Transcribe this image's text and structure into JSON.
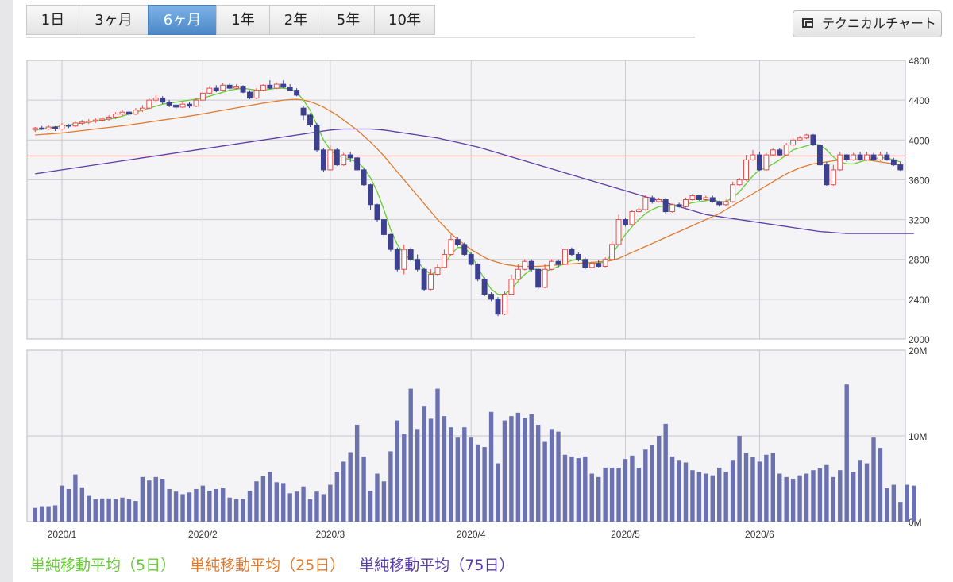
{
  "tabs": [
    {
      "label": "1日",
      "active": false
    },
    {
      "label": "3ヶ月",
      "active": false
    },
    {
      "label": "6ヶ月",
      "active": true
    },
    {
      "label": "1年",
      "active": false
    },
    {
      "label": "2年",
      "active": false
    },
    {
      "label": "5年",
      "active": false
    },
    {
      "label": "10年",
      "active": false
    }
  ],
  "technical_button": {
    "label": "テクニカルチャート",
    "icon": "window-icon"
  },
  "legend": [
    {
      "label": "単純移動平均（5日）",
      "color": "#66cc33"
    },
    {
      "label": "単純移動平均（25日）",
      "color": "#e07a2e"
    },
    {
      "label": "単純移動平均（75日）",
      "color": "#5a3ea8"
    }
  ],
  "chart_data": {
    "type": "candlestick",
    "x_ticks": [
      "2020/1",
      "2020/2",
      "2020/3",
      "2020/4",
      "2020/5",
      "2020/6"
    ],
    "x_tick_index": [
      4,
      25,
      44,
      65,
      88,
      108
    ],
    "price_axis": {
      "ticks": [
        4800,
        4400,
        4000,
        3600,
        3200,
        2800,
        2400,
        2000
      ],
      "ylim": [
        2000,
        4800
      ]
    },
    "volume_axis": {
      "ticks": [
        "20M",
        "10M",
        "0M"
      ],
      "ylim": [
        0,
        20
      ]
    },
    "reference_line": 3840,
    "colors": {
      "up": "#e84a4a",
      "down": "#3d3f8f",
      "volume": "#6c72b0",
      "grid": "#c9c9cf",
      "reference": "#e05555"
    },
    "candles": [
      [
        4100,
        4120,
        4080,
        4130,
        4070
      ],
      [
        4120,
        4110,
        4100,
        4140,
        4090
      ],
      [
        4110,
        4130,
        4100,
        4150,
        4090
      ],
      [
        4130,
        4120,
        4090,
        4140,
        4080
      ],
      [
        4110,
        4150,
        4100,
        4170,
        4060
      ],
      [
        4150,
        4140,
        4120,
        4160,
        4110
      ],
      [
        4140,
        4170,
        4130,
        4190,
        4120
      ],
      [
        4170,
        4180,
        4150,
        4200,
        4140
      ],
      [
        4180,
        4190,
        4160,
        4210,
        4150
      ],
      [
        4190,
        4200,
        4170,
        4220,
        4160
      ],
      [
        4200,
        4210,
        4180,
        4230,
        4170
      ],
      [
        4210,
        4230,
        4190,
        4250,
        4180
      ],
      [
        4230,
        4260,
        4210,
        4280,
        4200
      ],
      [
        4260,
        4280,
        4240,
        4300,
        4220
      ],
      [
        4280,
        4260,
        4240,
        4310,
        4230
      ],
      [
        4260,
        4300,
        4250,
        4320,
        4240
      ],
      [
        4300,
        4320,
        4280,
        4350,
        4270
      ],
      [
        4320,
        4400,
        4310,
        4420,
        4300
      ],
      [
        4400,
        4420,
        4380,
        4450,
        4370
      ],
      [
        4420,
        4380,
        4360,
        4440,
        4350
      ],
      [
        4380,
        4350,
        4330,
        4400,
        4320
      ],
      [
        4350,
        4330,
        4310,
        4370,
        4300
      ],
      [
        4330,
        4360,
        4320,
        4380,
        4310
      ],
      [
        4360,
        4340,
        4320,
        4380,
        4300
      ],
      [
        4340,
        4400,
        4330,
        4420,
        4320
      ],
      [
        4400,
        4470,
        4390,
        4490,
        4380
      ],
      [
        4470,
        4520,
        4460,
        4540,
        4450
      ],
      [
        4520,
        4500,
        4480,
        4550,
        4470
      ],
      [
        4500,
        4550,
        4490,
        4570,
        4480
      ],
      [
        4550,
        4520,
        4510,
        4570,
        4500
      ],
      [
        4520,
        4540,
        4510,
        4560,
        4500
      ],
      [
        4540,
        4480,
        4470,
        4550,
        4420
      ],
      [
        4480,
        4420,
        4410,
        4500,
        4400
      ],
      [
        4420,
        4500,
        4410,
        4520,
        4400
      ],
      [
        4500,
        4550,
        4490,
        4560,
        4480
      ],
      [
        4550,
        4520,
        4510,
        4600,
        4500
      ],
      [
        4520,
        4560,
        4510,
        4580,
        4500
      ],
      [
        4560,
        4530,
        4520,
        4600,
        4510
      ],
      [
        4530,
        4500,
        4490,
        4560,
        4480
      ],
      [
        4500,
        4450,
        4440,
        4520,
        4420
      ],
      [
        4320,
        4250,
        4200,
        4340,
        4190
      ],
      [
        4250,
        4150,
        4130,
        4270,
        4120
      ],
      [
        4150,
        3900,
        3880,
        4170,
        3860
      ],
      [
        3900,
        3700,
        3680,
        3920,
        3660
      ],
      [
        3700,
        3900,
        3690,
        3950,
        3680
      ],
      [
        3900,
        3750,
        3740,
        3920,
        3700
      ],
      [
        3750,
        3850,
        3740,
        3870,
        3720
      ],
      [
        3850,
        3820,
        3780,
        3880,
        3760
      ],
      [
        3820,
        3700,
        3690,
        3830,
        3680
      ],
      [
        3700,
        3550,
        3540,
        3720,
        3500
      ],
      [
        3550,
        3350,
        3300,
        3560,
        3280
      ],
      [
        3350,
        3200,
        3180,
        3360,
        3150
      ],
      [
        3200,
        3050,
        3020,
        3210,
        3000
      ],
      [
        3050,
        2900,
        2880,
        3060,
        2860
      ],
      [
        2900,
        2700,
        2680,
        2920,
        2650
      ],
      [
        2700,
        2900,
        2650,
        2950,
        2620
      ],
      [
        2900,
        2800,
        2780,
        2920,
        2760
      ],
      [
        2800,
        2700,
        2680,
        2850,
        2650
      ],
      [
        2700,
        2500,
        2480,
        2720,
        2450
      ],
      [
        2500,
        2650,
        2490,
        2700,
        2460
      ],
      [
        2650,
        2720,
        2640,
        2750,
        2620
      ],
      [
        2720,
        2850,
        2710,
        2900,
        2700
      ],
      [
        2850,
        3000,
        2840,
        3050,
        2820
      ],
      [
        3000,
        2950,
        2930,
        3020,
        2900
      ],
      [
        2950,
        2850,
        2830,
        2970,
        2800
      ],
      [
        2850,
        2750,
        2740,
        2870,
        2720
      ],
      [
        2750,
        2600,
        2580,
        2760,
        2560
      ],
      [
        2600,
        2450,
        2430,
        2620,
        2420
      ],
      [
        2450,
        2400,
        2380,
        2470,
        2350
      ],
      [
        2400,
        2250,
        2230,
        2420,
        2200
      ],
      [
        2250,
        2450,
        2240,
        2480,
        2230
      ],
      [
        2450,
        2600,
        2440,
        2650,
        2420
      ],
      [
        2600,
        2700,
        2590,
        2750,
        2580
      ],
      [
        2700,
        2780,
        2690,
        2800,
        2680
      ],
      [
        2780,
        2700,
        2680,
        2800,
        2660
      ],
      [
        2700,
        2520,
        2500,
        2720,
        2480
      ],
      [
        2520,
        2700,
        2510,
        2750,
        2500
      ],
      [
        2700,
        2780,
        2690,
        2800,
        2680
      ],
      [
        2780,
        2750,
        2720,
        2800,
        2700
      ],
      [
        2750,
        2900,
        2740,
        2950,
        2730
      ],
      [
        2900,
        2850,
        2830,
        2920,
        2820
      ],
      [
        2850,
        2800,
        2780,
        2870,
        2760
      ],
      [
        2800,
        2720,
        2700,
        2820,
        2690
      ],
      [
        2720,
        2760,
        2710,
        2780,
        2700
      ],
      [
        2760,
        2730,
        2720,
        2790,
        2710
      ],
      [
        2730,
        2800,
        2720,
        2820,
        2710
      ],
      [
        2800,
        2950,
        2790,
        2980,
        2780
      ],
      [
        2950,
        3200,
        2940,
        3250,
        2930
      ],
      [
        3200,
        3150,
        3130,
        3220,
        3100
      ],
      [
        3150,
        3280,
        3140,
        3300,
        3120
      ],
      [
        3280,
        3300,
        3270,
        3320,
        3260
      ],
      [
        3300,
        3420,
        3290,
        3450,
        3280
      ],
      [
        3420,
        3380,
        3360,
        3440,
        3340
      ],
      [
        3380,
        3400,
        3370,
        3420,
        3360
      ],
      [
        3400,
        3280,
        3260,
        3410,
        3250
      ],
      [
        3280,
        3350,
        3270,
        3360,
        3260
      ],
      [
        3350,
        3330,
        3320,
        3370,
        3310
      ],
      [
        3330,
        3400,
        3320,
        3420,
        3310
      ],
      [
        3400,
        3440,
        3390,
        3460,
        3380
      ],
      [
        3440,
        3400,
        3390,
        3450,
        3380
      ],
      [
        3400,
        3420,
        3390,
        3440,
        3380
      ],
      [
        3420,
        3380,
        3370,
        3440,
        3360
      ],
      [
        3380,
        3350,
        3330,
        3390,
        3320
      ],
      [
        3350,
        3380,
        3340,
        3400,
        3330
      ],
      [
        3380,
        3550,
        3370,
        3580,
        3360
      ],
      [
        3550,
        3600,
        3540,
        3620,
        3530
      ],
      [
        3600,
        3800,
        3590,
        3850,
        3580
      ],
      [
        3800,
        3850,
        3790,
        3900,
        3780
      ],
      [
        3850,
        3700,
        3690,
        3880,
        3680
      ],
      [
        3700,
        3850,
        3690,
        3870,
        3680
      ],
      [
        3850,
        3900,
        3840,
        3920,
        3830
      ],
      [
        3900,
        3850,
        3840,
        3920,
        3830
      ],
      [
        3850,
        3950,
        3840,
        3970,
        3830
      ],
      [
        3950,
        4000,
        3940,
        4020,
        3930
      ],
      [
        4000,
        4020,
        3990,
        4040,
        3980
      ],
      [
        4020,
        4050,
        4010,
        4060,
        4000
      ],
      [
        4050,
        3950,
        3940,
        4060,
        3920
      ],
      [
        3950,
        3750,
        3740,
        3960,
        3720
      ],
      [
        3750,
        3550,
        3540,
        3780,
        3520
      ],
      [
        3550,
        3700,
        3540,
        3750,
        3530
      ],
      [
        3700,
        3850,
        3690,
        3880,
        3680
      ],
      [
        3850,
        3800,
        3780,
        3860,
        3770
      ],
      [
        3800,
        3850,
        3790,
        3870,
        3780
      ],
      [
        3850,
        3800,
        3790,
        3880,
        3780
      ],
      [
        3800,
        3850,
        3790,
        3880,
        3780
      ],
      [
        3850,
        3800,
        3790,
        3870,
        3780
      ],
      [
        3800,
        3850,
        3790,
        3880,
        3780
      ],
      [
        3850,
        3800,
        3790,
        3880,
        3780
      ],
      [
        3800,
        3750,
        3740,
        3820,
        3720
      ],
      [
        3750,
        3700,
        3690,
        3780,
        3660
      ]
    ],
    "ma5": [
      4100,
      4110,
      4120,
      4130,
      4140,
      4150,
      4160,
      4170,
      4180,
      4190,
      4200,
      4210,
      4220,
      4240,
      4260,
      4280,
      4300,
      4320,
      4340,
      4360,
      4370,
      4380,
      4390,
      4400,
      4410,
      4420,
      4440,
      4460,
      4480,
      4500,
      4510,
      4520,
      4510,
      4500,
      4500,
      4510,
      4520,
      4520,
      4510,
      4480,
      4400,
      4300,
      4150,
      4000,
      3900,
      3850,
      3820,
      3800,
      3780,
      3720,
      3620,
      3480,
      3300,
      3100,
      2950,
      2850,
      2800,
      2780,
      2700,
      2650,
      2680,
      2750,
      2850,
      2920,
      2920,
      2850,
      2720,
      2600,
      2500,
      2450,
      2450,
      2500,
      2580,
      2650,
      2700,
      2700,
      2680,
      2700,
      2730,
      2760,
      2790,
      2800,
      2780,
      2760,
      2760,
      2780,
      2850,
      2950,
      3050,
      3130,
      3200,
      3260,
      3300,
      3330,
      3340,
      3340,
      3330,
      3350,
      3370,
      3380,
      3390,
      3400,
      3380,
      3380,
      3420,
      3480,
      3560,
      3640,
      3700,
      3720,
      3760,
      3800,
      3850,
      3900,
      3920,
      3940,
      3960,
      3950,
      3900,
      3830,
      3780,
      3760,
      3760,
      3780,
      3800,
      3810,
      3820,
      3820,
      3800,
      3780
    ],
    "ma25": [
      4050,
      4055,
      4060,
      4065,
      4070,
      4078,
      4086,
      4094,
      4102,
      4110,
      4118,
      4126,
      4134,
      4142,
      4150,
      4160,
      4170,
      4180,
      4190,
      4200,
      4210,
      4220,
      4230,
      4240,
      4250,
      4262,
      4274,
      4286,
      4298,
      4310,
      4322,
      4334,
      4346,
      4358,
      4370,
      4380,
      4390,
      4400,
      4405,
      4408,
      4400,
      4385,
      4360,
      4330,
      4290,
      4250,
      4200,
      4150,
      4100,
      4040,
      3980,
      3910,
      3840,
      3760,
      3680,
      3600,
      3520,
      3440,
      3360,
      3280,
      3200,
      3130,
      3060,
      3000,
      2950,
      2900,
      2860,
      2820,
      2790,
      2770,
      2750,
      2740,
      2730,
      2730,
      2730,
      2730,
      2735,
      2740,
      2745,
      2750,
      2755,
      2760,
      2765,
      2770,
      2775,
      2780,
      2790,
      2810,
      2840,
      2870,
      2900,
      2930,
      2960,
      2990,
      3020,
      3050,
      3080,
      3110,
      3140,
      3170,
      3200,
      3230,
      3260,
      3300,
      3340,
      3380,
      3420,
      3460,
      3500,
      3540,
      3580,
      3620,
      3660,
      3690,
      3720,
      3740,
      3760,
      3770,
      3780,
      3790,
      3800,
      3800,
      3800,
      3800,
      3800,
      3790,
      3780,
      3770,
      3760,
      3750
    ],
    "ma75": [
      3660,
      3670,
      3680,
      3690,
      3700,
      3710,
      3720,
      3730,
      3740,
      3750,
      3760,
      3770,
      3780,
      3790,
      3800,
      3810,
      3820,
      3830,
      3840,
      3850,
      3860,
      3870,
      3880,
      3890,
      3900,
      3910,
      3920,
      3930,
      3940,
      3950,
      3960,
      3970,
      3980,
      3990,
      4000,
      4010,
      4020,
      4030,
      4040,
      4050,
      4060,
      4070,
      4080,
      4090,
      4100,
      4105,
      4110,
      4110,
      4110,
      4110,
      4110,
      4105,
      4100,
      4090,
      4080,
      4070,
      4060,
      4050,
      4040,
      4030,
      4020,
      4005,
      3990,
      3975,
      3960,
      3945,
      3930,
      3910,
      3890,
      3870,
      3850,
      3830,
      3810,
      3790,
      3770,
      3750,
      3730,
      3710,
      3690,
      3670,
      3650,
      3630,
      3610,
      3590,
      3570,
      3550,
      3530,
      3510,
      3490,
      3470,
      3450,
      3430,
      3410,
      3390,
      3370,
      3350,
      3330,
      3310,
      3290,
      3270,
      3250,
      3240,
      3230,
      3220,
      3210,
      3200,
      3190,
      3180,
      3170,
      3160,
      3150,
      3140,
      3130,
      3120,
      3110,
      3100,
      3090,
      3080,
      3075,
      3070,
      3065,
      3060,
      3060,
      3060,
      3060,
      3060,
      3060,
      3060,
      3060,
      3060,
      3060,
      3060
    ],
    "volume": [
      1.6,
      1.8,
      1.8,
      1.9,
      4.2,
      3.8,
      5.5,
      4.0,
      3.0,
      2.6,
      2.7,
      2.7,
      2.6,
      2.8,
      2.6,
      2.4,
      5.2,
      4.8,
      5.2,
      5.0,
      3.8,
      3.5,
      3.2,
      3.4,
      3.8,
      4.2,
      3.6,
      3.8,
      3.9,
      2.8,
      2.6,
      2.6,
      3.6,
      4.7,
      5.3,
      5.8,
      4.6,
      4.5,
      3.3,
      3.5,
      4.1,
      2.6,
      3.5,
      3.2,
      4.3,
      5.8,
      7.0,
      8.1,
      11.3,
      7.6,
      3.6,
      5.6,
      4.7,
      8.2,
      11.8,
      10.2,
      15.5,
      10.8,
      13.5,
      12.0,
      15.5,
      12.3,
      11.0,
      9.8,
      11.0,
      9.8,
      9.0,
      8.7,
      12.8,
      6.8,
      11.8,
      12.3,
      12.7,
      12.1,
      12.5,
      11.3,
      9.3,
      10.8,
      10.5,
      7.8,
      7.6,
      7.4,
      7.6,
      5.6,
      5.2,
      6.3,
      6.3,
      6.3,
      7.3,
      7.7,
      6.3,
      8.4,
      8.9,
      10.0,
      11.4,
      7.6,
      7.2,
      6.9,
      6.0,
      5.8,
      5.6,
      5.4,
      6.3,
      5.8,
      7.2,
      10.0,
      8.0,
      7.5,
      7.0,
      7.8,
      8.0,
      5.6,
      5.2,
      5.0,
      5.4,
      5.6,
      6.0,
      6.2,
      6.6,
      5.2,
      6.0,
      16.0,
      5.8,
      7.2,
      6.8,
      9.8,
      8.6,
      3.9,
      4.3,
      2.3,
      4.3,
      4.2
    ]
  }
}
